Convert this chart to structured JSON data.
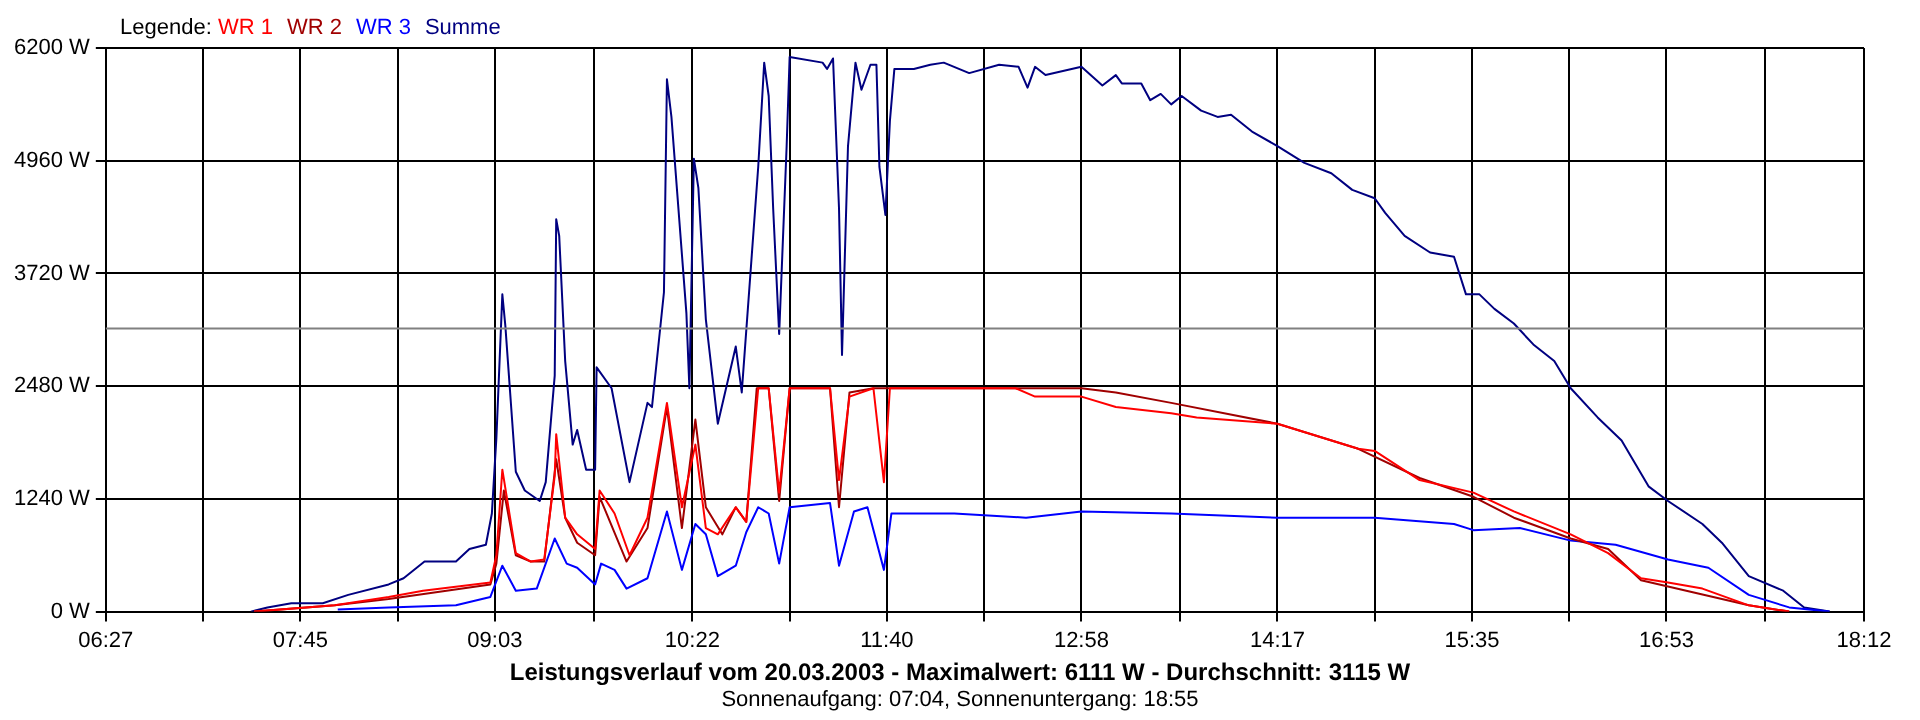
{
  "chart_data": {
    "type": "line",
    "title": "Leistungsverlauf vom 20.03.2003 - Maximalwert: 6111 W - Durchschnitt: 3115 W",
    "subtitle": "Sonnenaufgang: 07:04, Sonnenuntergang: 18:55",
    "legend_title": "Legende:",
    "legend": "top left",
    "grid": true,
    "xlim": [
      6.45,
      18.2
    ],
    "xticks": [
      {
        "value": 6.45,
        "label": "06:27"
      },
      {
        "value": 7.1,
        "label": null
      },
      {
        "value": 7.75,
        "label": "07:45"
      },
      {
        "value": 8.4,
        "label": null
      },
      {
        "value": 9.05,
        "label": "09:03"
      },
      {
        "value": 9.71,
        "label": null
      },
      {
        "value": 10.37,
        "label": "10:22"
      },
      {
        "value": 11.02,
        "label": null
      },
      {
        "value": 11.67,
        "label": "11:40"
      },
      {
        "value": 12.32,
        "label": null
      },
      {
        "value": 12.97,
        "label": "12:58"
      },
      {
        "value": 13.63,
        "label": null
      },
      {
        "value": 14.28,
        "label": "14:17"
      },
      {
        "value": 14.93,
        "label": null
      },
      {
        "value": 15.58,
        "label": "15:35"
      },
      {
        "value": 16.23,
        "label": null
      },
      {
        "value": 16.88,
        "label": "16:53"
      },
      {
        "value": 17.54,
        "label": null
      },
      {
        "value": 18.2,
        "label": "18:12"
      }
    ],
    "ylim": [
      0,
      6200
    ],
    "yticks": [
      {
        "value": 0,
        "label": "0 W"
      },
      {
        "value": 1240,
        "label": "1240 W"
      },
      {
        "value": 2480,
        "label": "2480 W"
      },
      {
        "value": 3720,
        "label": "3720 W"
      },
      {
        "value": 4960,
        "label": "4960 W"
      },
      {
        "value": 6200,
        "label": "6200 W"
      }
    ],
    "ref_lines": [
      {
        "axis": "y",
        "value": 3115,
        "color": "#808080"
      }
    ],
    "series": [
      {
        "name": "WR 1",
        "color": "#ff0000",
        "x": [
          7.44,
          7.98,
          8.34,
          8.57,
          9.02,
          9.06,
          9.1,
          9.19,
          9.29,
          9.38,
          9.45,
          9.46,
          9.52,
          9.6,
          9.72,
          9.75,
          9.85,
          9.95,
          10.07,
          10.2,
          10.3,
          10.39,
          10.46,
          10.54,
          10.66,
          10.73,
          10.81,
          10.88,
          10.95,
          11.02,
          11.29,
          11.35,
          11.42,
          11.58,
          11.65,
          11.69,
          12.53,
          12.66,
          12.97,
          13.2,
          13.57,
          13.74,
          14.28,
          14.82,
          14.93,
          15.23,
          15.59,
          15.86,
          16.24,
          16.49,
          16.71,
          16.89,
          17.12,
          17.43,
          17.7
        ],
        "values": [
          0,
          69,
          161,
          230,
          321,
          620,
          1561,
          643,
          551,
          574,
          1493,
          1952,
          1033,
          850,
          689,
          1332,
          1079,
          620,
          1033,
          2296,
          1148,
          1837,
          919,
          850,
          1148,
          987,
          2457,
          2457,
          1309,
          2457,
          2457,
          1447,
          2365,
          2457,
          1424,
          2457,
          2457,
          2365,
          2365,
          2250,
          2181,
          2136,
          2067,
          1791,
          1768,
          1447,
          1309,
          1102,
          850,
          643,
          367,
          321,
          253,
          69,
          0
        ]
      },
      {
        "name": "WR 2",
        "color": "#a00000",
        "x": [
          7.44,
          7.98,
          8.34,
          9.02,
          9.06,
          9.11,
          9.19,
          9.29,
          9.38,
          9.46,
          9.52,
          9.6,
          9.72,
          9.75,
          9.93,
          10.07,
          10.2,
          10.3,
          10.39,
          10.46,
          10.57,
          10.66,
          10.73,
          10.8,
          10.88,
          10.95,
          11.02,
          11.29,
          11.35,
          11.42,
          11.58,
          12.97,
          13.2,
          13.57,
          14.28,
          14.82,
          15.23,
          15.59,
          15.86,
          16.24,
          16.49,
          16.71,
          17.43,
          17.7
        ],
        "values": [
          0,
          69,
          138,
          299,
          528,
          1332,
          620,
          551,
          551,
          1676,
          1033,
          758,
          620,
          1263,
          551,
          919,
          2250,
          919,
          2113,
          1148,
          850,
          1148,
          987,
          2457,
          2457,
          1217,
          2457,
          2457,
          1148,
          2411,
          2457,
          2457,
          2411,
          2296,
          2067,
          1791,
          1470,
          1263,
          1033,
          804,
          689,
          344,
          69,
          0
        ]
      },
      {
        "name": "WR 3",
        "color": "#0000ff",
        "x": [
          8.0,
          8.34,
          8.79,
          9.02,
          9.1,
          9.19,
          9.33,
          9.45,
          9.53,
          9.6,
          9.72,
          9.76,
          9.85,
          9.93,
          10.07,
          10.2,
          10.3,
          10.39,
          10.46,
          10.54,
          10.66,
          10.73,
          10.81,
          10.88,
          10.95,
          11.02,
          11.29,
          11.35,
          11.45,
          11.54,
          11.65,
          11.7,
          12.12,
          12.6,
          12.97,
          13.57,
          14.28,
          14.93,
          15.46,
          15.59,
          15.9,
          16.24,
          16.54,
          16.89,
          17.16,
          17.43,
          17.7,
          17.97
        ],
        "values": [
          23,
          46,
          69,
          161,
          505,
          230,
          253,
          804,
          528,
          482,
          299,
          528,
          459,
          253,
          367,
          1102,
          459,
          964,
          850,
          390,
          505,
          873,
          1148,
          1079,
          528,
          1148,
          1194,
          505,
          1102,
          1148,
          459,
          1079,
          1079,
          1033,
          1102,
          1079,
          1033,
          1033,
          964,
          896,
          919,
          781,
          735,
          574,
          482,
          184,
          46,
          0
        ]
      },
      {
        "name": "Summe",
        "color": "#000080",
        "x": [
          7.42,
          7.53,
          7.69,
          7.9,
          8.07,
          8.34,
          8.44,
          8.58,
          8.79,
          8.88,
          8.99,
          9.03,
          9.06,
          9.1,
          9.12,
          9.19,
          9.25,
          9.35,
          9.39,
          9.45,
          9.46,
          9.48,
          9.52,
          9.57,
          9.6,
          9.66,
          9.72,
          9.73,
          9.83,
          9.95,
          10.07,
          10.1,
          10.18,
          10.2,
          10.23,
          10.33,
          10.35,
          10.38,
          10.41,
          10.46,
          10.54,
          10.66,
          10.7,
          10.81,
          10.85,
          10.88,
          10.91,
          10.95,
          11.0,
          11.02,
          11.24,
          11.27,
          11.31,
          11.35,
          11.37,
          11.41,
          11.46,
          11.5,
          11.56,
          11.6,
          11.62,
          11.66,
          11.69,
          11.72,
          11.85,
          11.96,
          12.05,
          12.22,
          12.42,
          12.55,
          12.61,
          12.66,
          12.73,
          12.97,
          13.11,
          13.2,
          13.24,
          13.37,
          13.43,
          13.5,
          13.57,
          13.64,
          13.77,
          13.88,
          13.97,
          14.11,
          14.28,
          14.46,
          14.64,
          14.78,
          14.93,
          15.0,
          15.13,
          15.3,
          15.46,
          15.54,
          15.63,
          15.73,
          15.86,
          15.99,
          16.13,
          16.24,
          16.42,
          16.58,
          16.76,
          16.89,
          17.12,
          17.25,
          17.43,
          17.66,
          17.8,
          17.97
        ],
        "values": [
          0,
          46,
          92,
          92,
          184,
          299,
          367,
          551,
          551,
          689,
          735,
          1079,
          1906,
          3490,
          3146,
          1539,
          1332,
          1217,
          1424,
          2595,
          4317,
          4133,
          2756,
          1837,
          1998,
          1561,
          1561,
          2687,
          2457,
          1424,
          2296,
          2250,
          3513,
          5856,
          5442,
          3284,
          2457,
          4983,
          4662,
          3215,
          2067,
          2916,
          2411,
          4891,
          6039,
          5672,
          4432,
          3054,
          5121,
          6100,
          6039,
          5970,
          6085,
          4432,
          2824,
          5121,
          6039,
          5741,
          6016,
          6016,
          4891,
          4363,
          5396,
          5970,
          5970,
          6016,
          6039,
          5924,
          6016,
          5993,
          5764,
          5993,
          5902,
          5993,
          5787,
          5902,
          5810,
          5810,
          5626,
          5695,
          5580,
          5672,
          5511,
          5442,
          5465,
          5281,
          5121,
          4937,
          4822,
          4639,
          4547,
          4386,
          4133,
          3950,
          3904,
          3490,
          3490,
          3330,
          3169,
          2939,
          2756,
          2457,
          2136,
          1883,
          1378,
          1217,
          964,
          758,
          390,
          230,
          46,
          0
        ]
      }
    ]
  }
}
